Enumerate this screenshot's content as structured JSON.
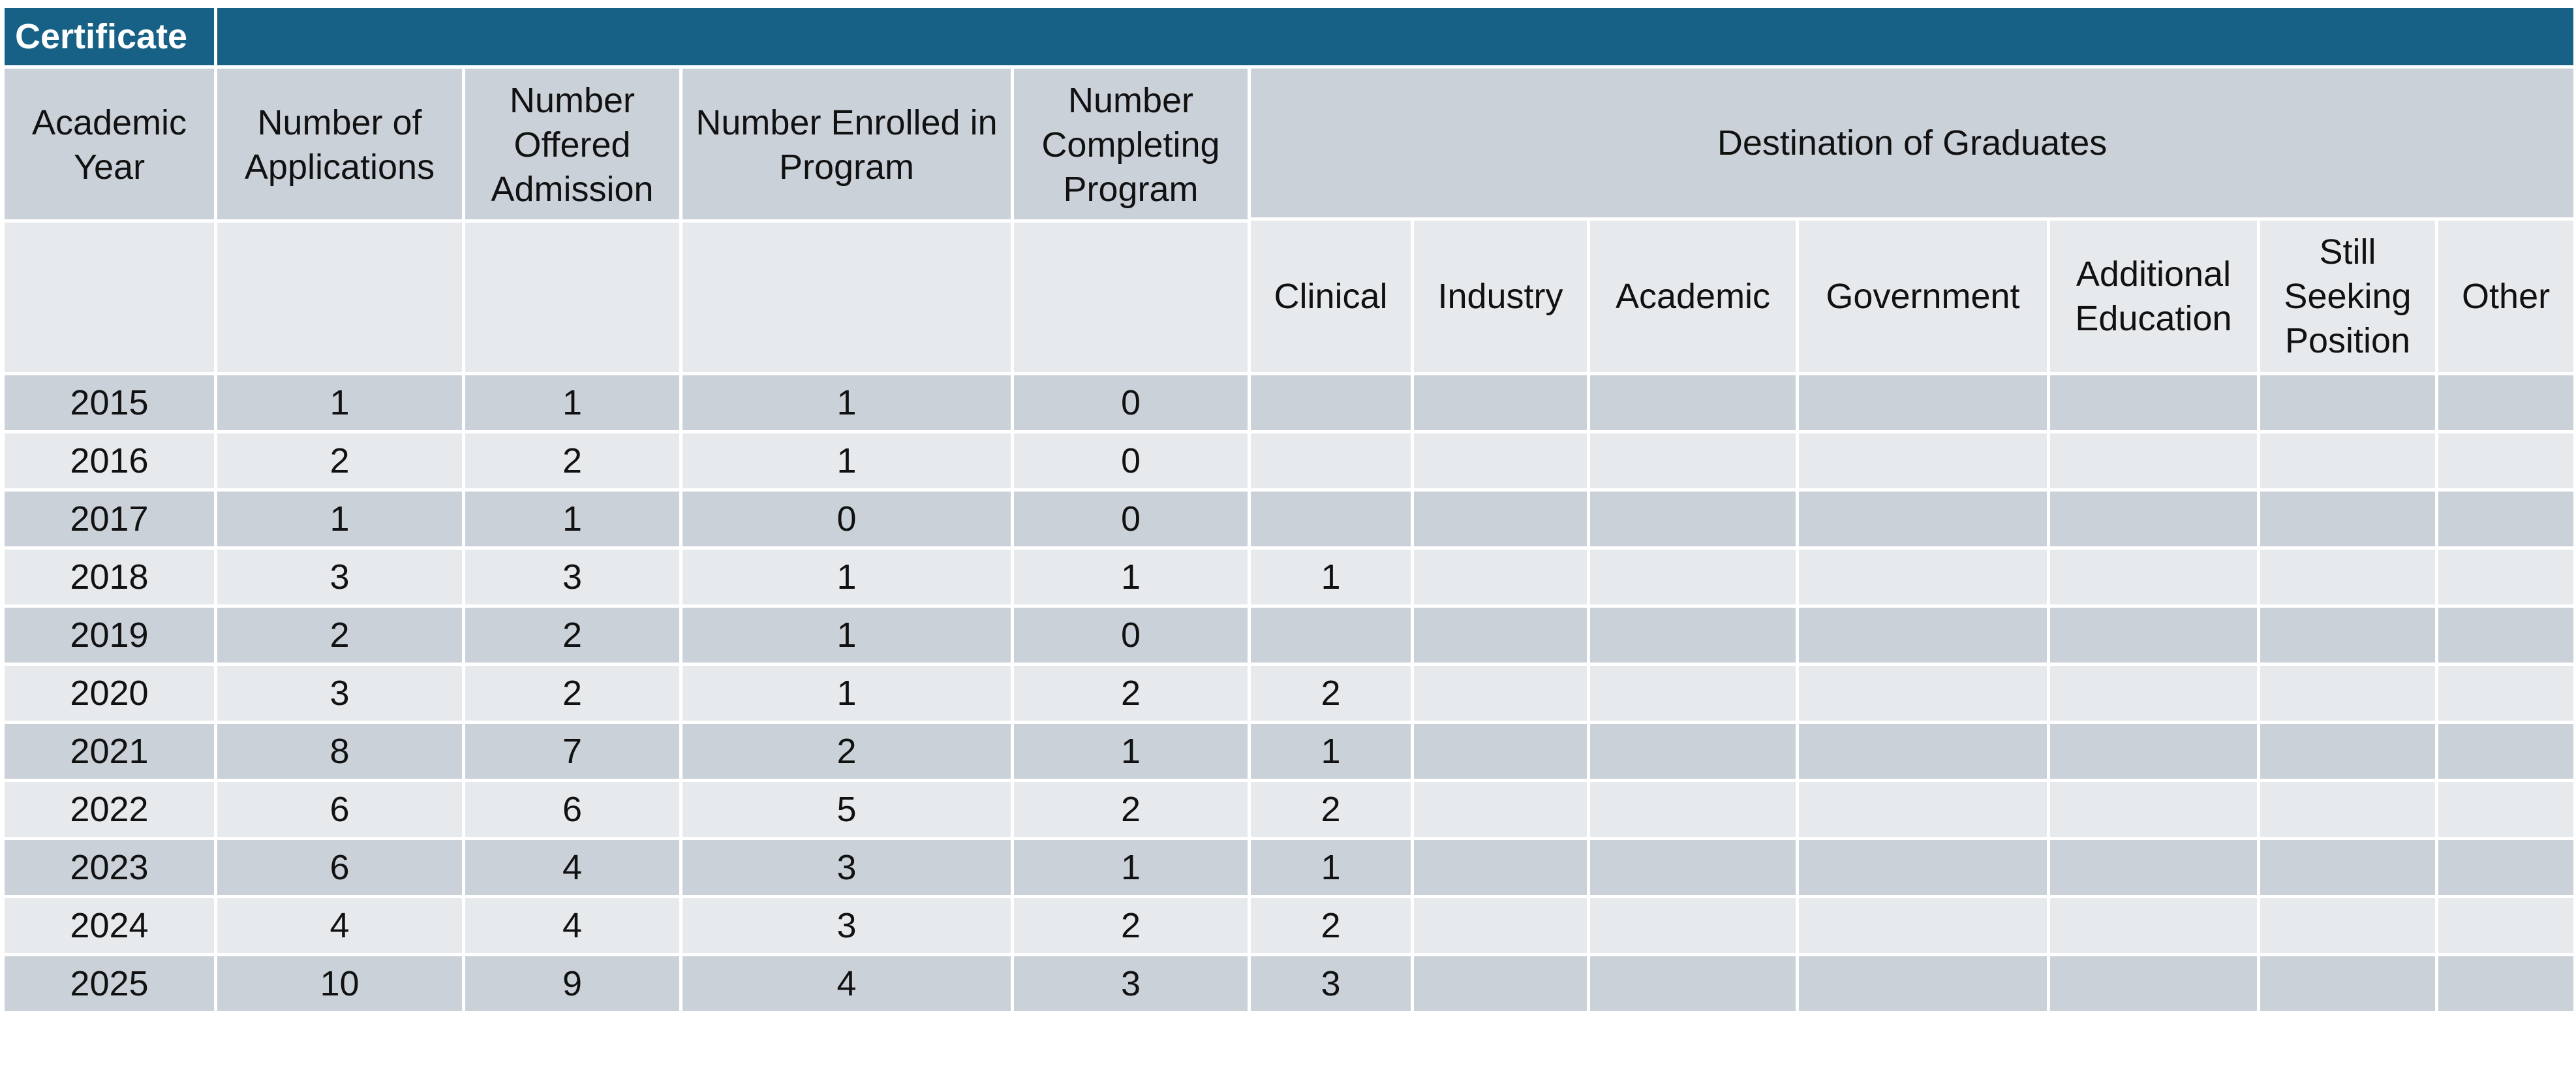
{
  "title": "Certificate",
  "headers": {
    "academic_year": "Academic Year",
    "applications": "Number of Applications",
    "offered": "Number Offered Admission",
    "enrolled": "Number Enrolled in Program",
    "completing": "Number Completing Program",
    "destination": "Destination of Graduates"
  },
  "destination_columns": [
    "Clinical",
    "Industry",
    "Academic",
    "Government",
    "Additional Education",
    "Still Seeking Position",
    "Other"
  ],
  "rows": [
    {
      "year": "2015",
      "applications": "1",
      "offered": "1",
      "enrolled": "1",
      "completing": "0",
      "destinations": [
        "",
        "",
        "",
        "",
        "",
        "",
        ""
      ]
    },
    {
      "year": "2016",
      "applications": "2",
      "offered": "2",
      "enrolled": "1",
      "completing": "0",
      "destinations": [
        "",
        "",
        "",
        "",
        "",
        "",
        ""
      ]
    },
    {
      "year": "2017",
      "applications": "1",
      "offered": "1",
      "enrolled": "0",
      "completing": "0",
      "destinations": [
        "",
        "",
        "",
        "",
        "",
        "",
        ""
      ]
    },
    {
      "year": "2018",
      "applications": "3",
      "offered": "3",
      "enrolled": "1",
      "completing": "1",
      "destinations": [
        "1",
        "",
        "",
        "",
        "",
        "",
        ""
      ]
    },
    {
      "year": "2019",
      "applications": "2",
      "offered": "2",
      "enrolled": "1",
      "completing": "0",
      "destinations": [
        "",
        "",
        "",
        "",
        "",
        "",
        ""
      ]
    },
    {
      "year": "2020",
      "applications": "3",
      "offered": "2",
      "enrolled": "1",
      "completing": "2",
      "destinations": [
        "2",
        "",
        "",
        "",
        "",
        "",
        ""
      ]
    },
    {
      "year": "2021",
      "applications": "8",
      "offered": "7",
      "enrolled": "2",
      "completing": "1",
      "destinations": [
        "1",
        "",
        "",
        "",
        "",
        "",
        ""
      ]
    },
    {
      "year": "2022",
      "applications": "6",
      "offered": "6",
      "enrolled": "5",
      "completing": "2",
      "destinations": [
        "2",
        "",
        "",
        "",
        "",
        "",
        ""
      ]
    },
    {
      "year": "2023",
      "applications": "6",
      "offered": "4",
      "enrolled": "3",
      "completing": "1",
      "destinations": [
        "1",
        "",
        "",
        "",
        "",
        "",
        ""
      ]
    },
    {
      "year": "2024",
      "applications": "4",
      "offered": "4",
      "enrolled": "3",
      "completing": "2",
      "destinations": [
        "2",
        "",
        "",
        "",
        "",
        "",
        ""
      ]
    },
    {
      "year": "2025",
      "applications": "10",
      "offered": "9",
      "enrolled": "4",
      "completing": "3",
      "destinations": [
        "3",
        "",
        "",
        "",
        "",
        "",
        ""
      ]
    }
  ],
  "colors": {
    "title_bar": "#166185",
    "header_fill": "#cbd1d9",
    "band_dark": "#cbd1d9",
    "band_light": "#e7eaed",
    "grid_line": "#ffffff"
  }
}
